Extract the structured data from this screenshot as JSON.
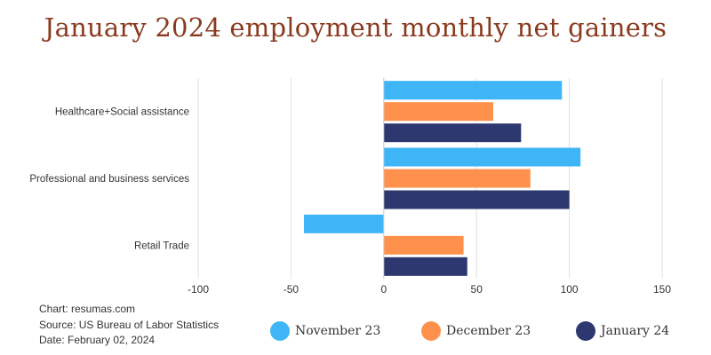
{
  "chart_data": {
    "type": "bar",
    "orientation": "horizontal",
    "title": "January 2024 employment monthly net gainers",
    "categories": [
      "Healthcare+Social assistance",
      "Professional and business services",
      "Retail Trade"
    ],
    "series": [
      {
        "name": "November 23",
        "color": "#3db5f7",
        "values": [
          96,
          106,
          -43
        ]
      },
      {
        "name": "December 23",
        "color": "#ff914d",
        "values": [
          59,
          79,
          43
        ]
      },
      {
        "name": "January 24",
        "color": "#2e3870",
        "values": [
          74,
          100,
          45
        ]
      }
    ],
    "xlim": [
      -100,
      150
    ],
    "xticks": [
      "-100",
      "-50",
      "0",
      "50",
      "100",
      "150"
    ],
    "grid": true,
    "legend_position": "bottom"
  },
  "notes": {
    "chart": "Chart: resumas.com",
    "source": "Source: US Bureau of Labor Statistics",
    "date": "Date: February 02, 2024"
  }
}
